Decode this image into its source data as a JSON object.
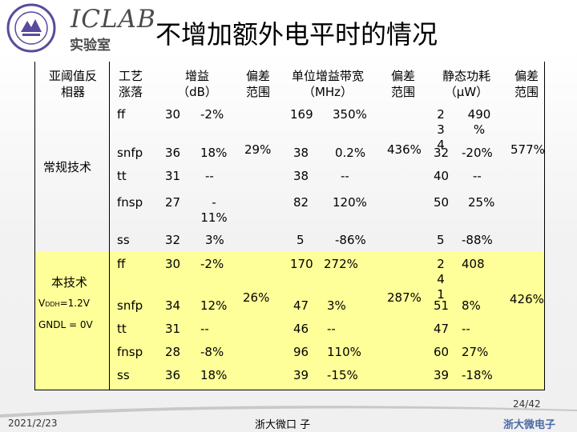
{
  "header": {
    "logo_text": "ICLAB",
    "lab_label": "实验室",
    "title": "不增加额外电平时的情况"
  },
  "table": {
    "headers": {
      "threshold": [
        "亚阈值反",
        "相器"
      ],
      "process": [
        "工艺",
        "涨落"
      ],
      "gain": [
        "增益",
        "（dB）"
      ],
      "gain_dev": [
        "偏差",
        "范围"
      ],
      "gbw": [
        "单位增益带宽",
        "（MHz）"
      ],
      "gbw_dev": [
        "偏差",
        "范围"
      ],
      "power": [
        "静态功耗",
        "（μW）"
      ],
      "power_dev": [
        "偏差",
        "范围"
      ]
    },
    "groups": [
      {
        "name": "常规技术",
        "gain_dev": "29%",
        "gbw_dev": "436%",
        "power_dev": "577%",
        "rows": [
          {
            "corner": "ff",
            "gain": "30",
            "gain_pct": "-2%",
            "gbw": "169",
            "gbw_pct": "350%",
            "power": "23 4",
            "power_pct": "490 %"
          },
          {
            "corner": "snfp",
            "gain": "36",
            "gain_pct": "18%",
            "gbw": "38",
            "gbw_pct": "0.2%",
            "power": "32",
            "power_pct": "-20%"
          },
          {
            "corner": "tt",
            "gain": "31",
            "gain_pct": "--",
            "gbw": "38",
            "gbw_pct": "--",
            "power": "40",
            "power_pct": "--"
          },
          {
            "corner": "fnsp",
            "gain": "27",
            "gain_pct": "- 11%",
            "gbw": "82",
            "gbw_pct": "120%",
            "power": "50",
            "power_pct": "25%"
          },
          {
            "corner": "ss",
            "gain": "32",
            "gain_pct": "3%",
            "gbw": "5",
            "gbw_pct": "-86%",
            "power": "5",
            "power_pct": "-88%"
          }
        ]
      },
      {
        "name": "本技术",
        "vddh_prefix": "V",
        "vddh_sub": "DDH",
        "vddh_value": "=1.2V",
        "gndl": "GNDL = 0V",
        "gain_dev": "26%",
        "gbw_dev": "287%",
        "power_dev": "426%",
        "rows": [
          {
            "corner": "ff",
            "gain": "30",
            "gain_pct": "-2%",
            "gbw": "170",
            "gbw_pct": "272%",
            "power": "24 1",
            "power_pct": "408"
          },
          {
            "corner": "snfp",
            "gain": "34",
            "gain_pct": "12%",
            "gbw": "47",
            "gbw_pct": "3%",
            "power": "51",
            "power_pct": "8%"
          },
          {
            "corner": "tt",
            "gain": "31",
            "gain_pct": "--",
            "gbw": "46",
            "gbw_pct": "--",
            "power": "47",
            "power_pct": "--"
          },
          {
            "corner": "fnsp",
            "gain": "28",
            "gain_pct": "-8%",
            "gbw": "96",
            "gbw_pct": "110%",
            "power": "60",
            "power_pct": "27%"
          },
          {
            "corner": "ss",
            "gain": "36",
            "gain_pct": "18%",
            "gbw": "39",
            "gbw_pct": "-15%",
            "power": "39",
            "power_pct": "-18%"
          }
        ]
      }
    ]
  },
  "footer": {
    "page": "24/42",
    "date": "2021/2/23",
    "org": "浙大微口 子",
    "brand": "浙大微电子"
  },
  "colors": {
    "highlight": "#ffff99",
    "logo_purple": "#5b4a9b",
    "brand_blue": "#4b6ba6"
  }
}
